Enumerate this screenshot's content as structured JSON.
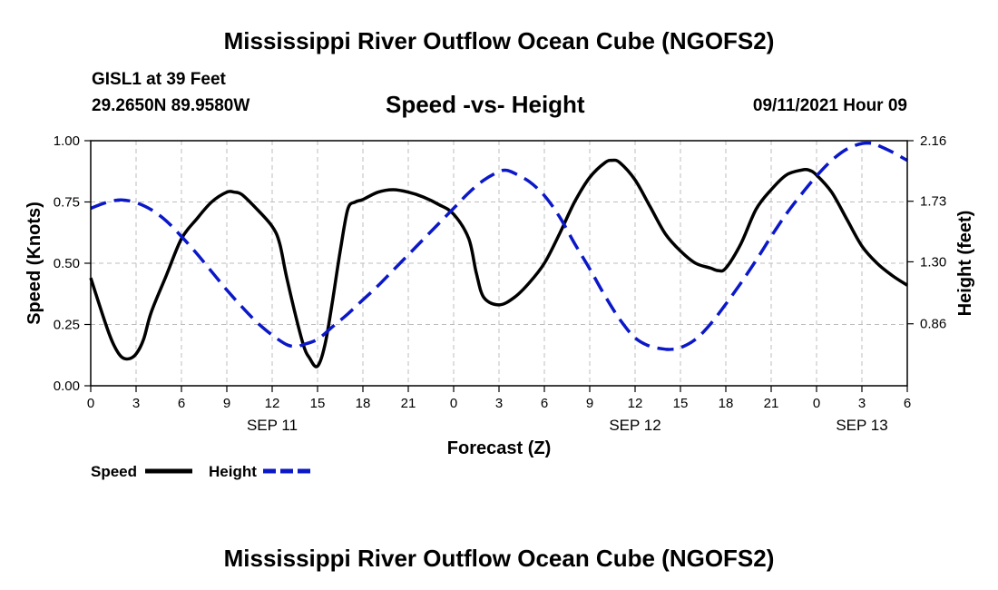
{
  "header": {
    "title": "Mississippi River Outflow Ocean Cube (NGOFS2)",
    "station": "GISL1 at 39 Feet",
    "coords": "29.2650N  89.9580W",
    "subtitle": "Speed -vs- Height",
    "datetime": "09/11/2021 Hour 09"
  },
  "footer": {
    "title": "Mississippi River Outflow Ocean Cube (NGOFS2)"
  },
  "colors": {
    "speed": "#000000",
    "height": "#0b18c8",
    "grid": "#bdbdbd"
  },
  "chart_data": {
    "type": "line",
    "title": "Speed -vs- Height",
    "xlabel": "Forecast (Z)",
    "ylabel": "Speed (Knots)",
    "y2label": "Height (feet)",
    "xlim": [
      0,
      54
    ],
    "ylim": [
      0,
      1
    ],
    "y2lim": [
      0.42,
      2.16
    ],
    "grid": true,
    "x_ticks": [
      0,
      3,
      6,
      9,
      12,
      15,
      18,
      21,
      24,
      27,
      30,
      33,
      36,
      39,
      42,
      45,
      48,
      51,
      54
    ],
    "x_tick_labels": [
      "0",
      "3",
      "6",
      "9",
      "12",
      "15",
      "18",
      "21",
      "0",
      "3",
      "6",
      "9",
      "12",
      "15",
      "18",
      "21",
      "0",
      "3",
      "6"
    ],
    "y_ticks": [
      0,
      0.25,
      0.5,
      0.75,
      1.0
    ],
    "y_tick_labels": [
      "0.00",
      "0.25",
      "0.50",
      "0.75",
      "1.00"
    ],
    "y2_ticks": [
      0.86,
      1.3,
      1.73,
      2.16
    ],
    "y2_tick_labels": [
      "0.86",
      "1.30",
      "1.73",
      "2.16"
    ],
    "date_labels": [
      {
        "label": "SEP 11",
        "x": 12
      },
      {
        "label": "SEP 12",
        "x": 36
      },
      {
        "label": "SEP 13",
        "x": 51
      }
    ],
    "legend_position": "bottom-left",
    "series": [
      {
        "name": "Speed",
        "axis": "left",
        "style": "solid",
        "x": [
          0,
          1,
          1.5,
          2,
          2.5,
          3,
          3.5,
          4,
          5,
          6,
          7,
          8,
          9,
          9.5,
          10,
          11,
          12,
          12.5,
          13,
          14,
          14.5,
          15,
          15.5,
          16,
          16.5,
          17,
          17.5,
          18,
          19,
          20,
          21,
          22,
          23,
          24,
          25,
          25.5,
          26,
          27,
          28,
          29,
          30,
          31,
          32,
          33,
          34,
          34.5,
          35,
          36,
          37,
          38,
          39,
          40,
          41,
          41.5,
          42,
          43,
          44,
          45,
          46,
          47,
          47.5,
          48,
          49,
          50,
          51,
          52,
          53,
          54
        ],
        "values": [
          0.44,
          0.25,
          0.17,
          0.12,
          0.11,
          0.13,
          0.19,
          0.3,
          0.45,
          0.6,
          0.68,
          0.75,
          0.79,
          0.79,
          0.78,
          0.72,
          0.65,
          0.58,
          0.43,
          0.18,
          0.11,
          0.08,
          0.17,
          0.35,
          0.55,
          0.72,
          0.75,
          0.76,
          0.79,
          0.8,
          0.79,
          0.77,
          0.74,
          0.7,
          0.6,
          0.46,
          0.36,
          0.33,
          0.36,
          0.42,
          0.5,
          0.62,
          0.75,
          0.85,
          0.91,
          0.92,
          0.91,
          0.84,
          0.73,
          0.62,
          0.55,
          0.5,
          0.48,
          0.47,
          0.48,
          0.58,
          0.72,
          0.8,
          0.86,
          0.88,
          0.88,
          0.86,
          0.79,
          0.68,
          0.57,
          0.5,
          0.45,
          0.41
        ]
      },
      {
        "name": "Height",
        "axis": "right",
        "style": "dashed",
        "x": [
          0,
          1,
          2,
          3,
          4,
          5,
          6,
          7,
          8,
          9,
          10,
          11,
          12,
          13,
          13.7,
          14,
          15,
          16,
          17,
          18,
          19,
          20,
          21,
          22,
          23,
          24,
          25,
          26,
          27,
          27.5,
          28,
          29,
          30,
          31,
          32,
          33,
          34,
          35,
          36,
          37,
          38,
          38.5,
          39,
          40,
          41,
          42,
          43,
          44,
          45,
          46,
          47,
          48,
          49,
          50,
          51,
          51.8,
          52,
          53,
          54
        ],
        "values": [
          1.68,
          1.72,
          1.74,
          1.72,
          1.67,
          1.59,
          1.48,
          1.36,
          1.23,
          1.1,
          0.98,
          0.87,
          0.78,
          0.71,
          0.7,
          0.71,
          0.75,
          0.84,
          0.93,
          1.03,
          1.13,
          1.24,
          1.35,
          1.46,
          1.57,
          1.68,
          1.79,
          1.88,
          1.94,
          1.95,
          1.93,
          1.87,
          1.77,
          1.62,
          1.43,
          1.25,
          1.06,
          0.89,
          0.76,
          0.7,
          0.68,
          0.68,
          0.69,
          0.75,
          0.86,
          1.0,
          1.15,
          1.31,
          1.48,
          1.64,
          1.78,
          1.91,
          2.02,
          2.1,
          2.14,
          2.14,
          2.13,
          2.08,
          2.02
        ]
      }
    ]
  }
}
